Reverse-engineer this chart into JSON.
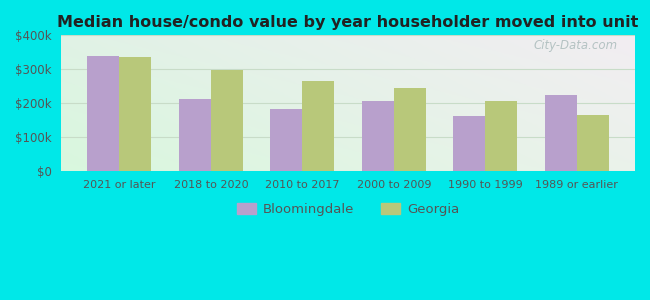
{
  "title": "Median house/condo value by year householder moved into unit",
  "categories": [
    "2021 or later",
    "2018 to 2020",
    "2010 to 2017",
    "2000 to 2009",
    "1990 to 1999",
    "1989 or earlier"
  ],
  "bloomingdale": [
    340000,
    212000,
    183000,
    207000,
    160000,
    225000
  ],
  "georgia": [
    335000,
    298000,
    265000,
    243000,
    207000,
    163000
  ],
  "bar_color_bloomingdale": "#b8a0cc",
  "bar_color_georgia": "#b8c87a",
  "background_outer": "#00e8e8",
  "background_inner_topleft": "#d8eedd",
  "background_inner_topright": "#ddeef0",
  "background_inner_bottom": "#e8f5e8",
  "ylim": [
    0,
    400000
  ],
  "yticks": [
    0,
    100000,
    200000,
    300000,
    400000
  ],
  "ytick_labels": [
    "$0",
    "$100k",
    "$200k",
    "$300k",
    "$400k"
  ],
  "legend_bloomingdale": "Bloomingdale",
  "legend_georgia": "Georgia",
  "watermark": "City-Data.com",
  "gridline_color": "#c8dcc8"
}
